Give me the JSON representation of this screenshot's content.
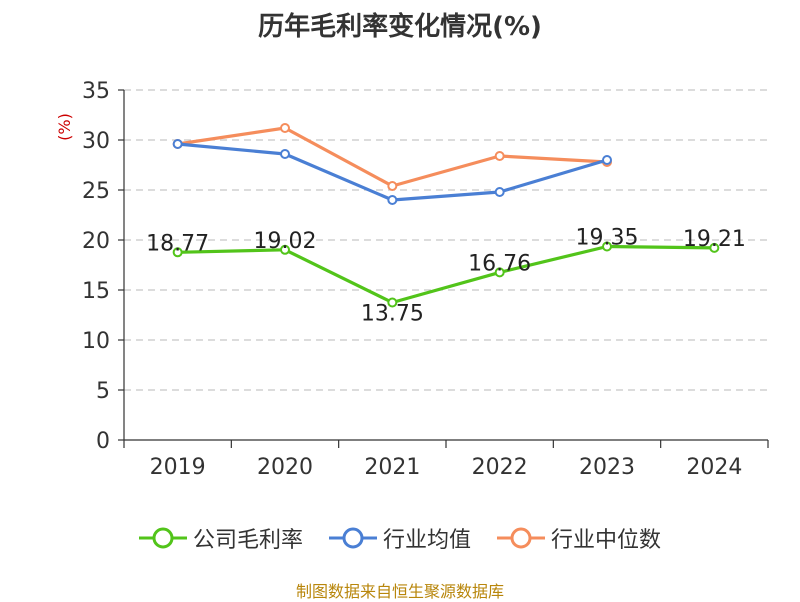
{
  "chart_data": {
    "type": "line",
    "title": "历年毛利率变化情况(%)",
    "ylabel": "(%)",
    "xlabel": "",
    "categories": [
      "2019",
      "2020",
      "2021",
      "2022",
      "2023",
      "2024"
    ],
    "ylim": [
      0,
      35
    ],
    "yticks": [
      0,
      5,
      10,
      15,
      20,
      25,
      30,
      35
    ],
    "grid": true,
    "legend_position": "bottom",
    "series": [
      {
        "name": "公司毛利率",
        "color": "#52c41a",
        "values": [
          18.77,
          19.02,
          13.75,
          16.76,
          19.35,
          19.21
        ],
        "labels": [
          "18.77",
          "19.02",
          "13.75",
          "16.76",
          "19.35",
          "19.21"
        ]
      },
      {
        "name": "行业均值",
        "color": "#4a7fd4",
        "values": [
          29.6,
          28.6,
          24.0,
          24.8,
          28.0,
          null
        ]
      },
      {
        "name": "行业中位数",
        "color": "#f58d5c",
        "values": [
          29.6,
          31.2,
          25.4,
          28.4,
          27.8,
          null
        ]
      }
    ]
  },
  "source": "制图数据来自恒生聚源数据库"
}
